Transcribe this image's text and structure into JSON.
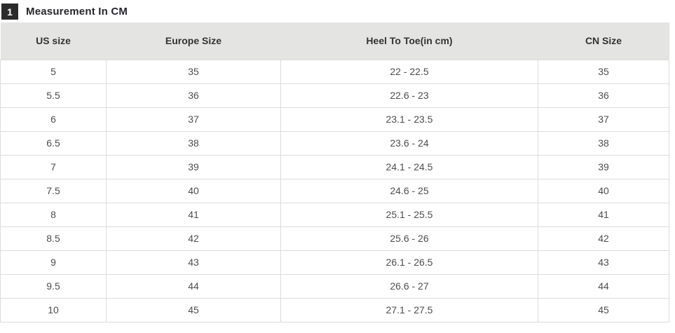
{
  "header": {
    "badge": "1",
    "title": "Measurement In CM"
  },
  "chart_data": {
    "type": "table",
    "title": "Measurement In CM",
    "columns": [
      "US size",
      "Europe Size",
      "Heel To Toe(in cm)",
      "CN Size"
    ],
    "rows": [
      [
        "5",
        "35",
        "22 - 22.5",
        "35"
      ],
      [
        "5.5",
        "36",
        "22.6 - 23",
        "36"
      ],
      [
        "6",
        "37",
        "23.1 - 23.5",
        "37"
      ],
      [
        "6.5",
        "38",
        "23.6 - 24",
        "38"
      ],
      [
        "7",
        "39",
        "24.1 - 24.5",
        "39"
      ],
      [
        "7.5",
        "40",
        "24.6 - 25",
        "40"
      ],
      [
        "8",
        "41",
        "25.1 - 25.5",
        "41"
      ],
      [
        "8.5",
        "42",
        "25.6 - 26",
        "42"
      ],
      [
        "9",
        "43",
        "26.1 - 26.5",
        "43"
      ],
      [
        "9.5",
        "44",
        "26.6 - 27",
        "44"
      ],
      [
        "10",
        "45",
        "27.1 - 27.5",
        "45"
      ]
    ]
  },
  "colors": {
    "header_bg": "#e4e4e2",
    "grid_border": "#dcdcdc",
    "badge_bg": "#2b2b2b",
    "title_text": "#26262c",
    "cell_text": "#4d4d4d"
  }
}
